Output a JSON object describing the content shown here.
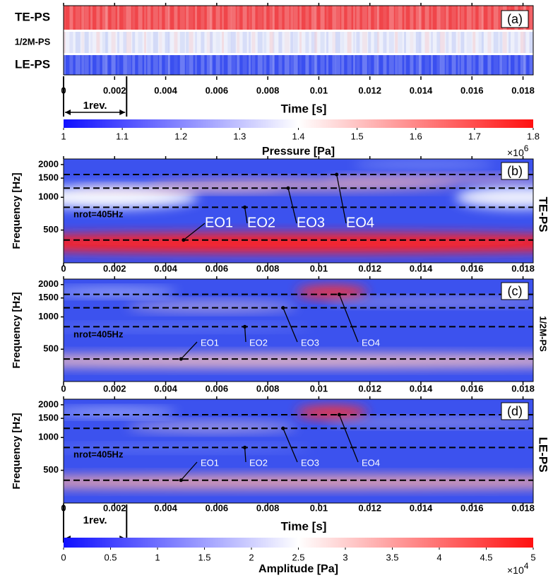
{
  "chart_data": [
    {
      "type": "strips",
      "label": "(a)",
      "rows": [
        "TE-PS",
        "1/2M-PS",
        "LE-PS"
      ],
      "row_colors": [
        "#f0454a",
        "#eef0fb",
        "#3a4ff0"
      ],
      "xlim": [
        0,
        0.0184
      ],
      "xticks": [
        0,
        0.002,
        0.004,
        0.006,
        0.008,
        0.01,
        0.012,
        0.014,
        0.016,
        0.018
      ],
      "xlabel": "Time [s]",
      "rev_label": "1rev.",
      "rev_period": 0.00247,
      "colorbar": {
        "label": "Pressure [Pa]",
        "lim": [
          1,
          1.8
        ],
        "ticks": [
          1,
          1.1,
          1.2,
          1.3,
          1.4,
          1.5,
          1.6,
          1.7,
          1.8
        ],
        "multiplier": "×10",
        "exponent": "6",
        "colormap": [
          "#1010ff",
          "#ffffff",
          "#ff1010"
        ]
      }
    },
    {
      "type": "spectrogram",
      "label": "(b)",
      "side_label": "TE-PS",
      "ylabel": "Frequency [Hz]",
      "ylog": true,
      "ylim": [
        250,
        2250
      ],
      "yticks": [
        500,
        1000,
        1500,
        2000
      ],
      "xlim": [
        0,
        0.0184
      ],
      "xticks": [
        0,
        0.002,
        0.004,
        0.006,
        0.008,
        0.01,
        0.012,
        0.014,
        0.016,
        0.018
      ],
      "harmonics": [
        405,
        810,
        1215,
        1620
      ],
      "rotation_label": "nrot=405Hz",
      "annotation_color": "#ffffff",
      "annotations": [
        {
          "text": "EO1",
          "x": 0.0047,
          "y": 405
        },
        {
          "text": "EO2",
          "x": 0.0071,
          "y": 810
        },
        {
          "text": "EO3",
          "x": 0.0088,
          "y": 1215
        },
        {
          "text": "EO4",
          "x": 0.0107,
          "y": 1620
        }
      ]
    },
    {
      "type": "spectrogram",
      "label": "(c)",
      "side_label": "1/2M-PS",
      "ylabel": "Frequency [Hz]",
      "ylog": true,
      "ylim": [
        250,
        2250
      ],
      "yticks": [
        500,
        1000,
        1500,
        2000
      ],
      "xlim": [
        0,
        0.0184
      ],
      "xticks": [
        0,
        0.002,
        0.004,
        0.006,
        0.008,
        0.01,
        0.012,
        0.014,
        0.016,
        0.018
      ],
      "harmonics": [
        405,
        810,
        1215,
        1620
      ],
      "rotation_label": "nrot=405Hz",
      "annotation_color": "#ffffff",
      "annotations": [
        {
          "text": "EO1",
          "x": 0.0046,
          "y": 405
        },
        {
          "text": "EO2",
          "x": 0.0071,
          "y": 810
        },
        {
          "text": "EO3",
          "x": 0.0086,
          "y": 1215
        },
        {
          "text": "EO4",
          "x": 0.0108,
          "y": 1620
        }
      ]
    },
    {
      "type": "spectrogram",
      "label": "(d)",
      "side_label": "LE-PS",
      "ylabel": "Frequency [Hz]",
      "ylog": true,
      "ylim": [
        250,
        2250
      ],
      "yticks": [
        500,
        1000,
        1500,
        2000
      ],
      "xlim": [
        0,
        0.0184
      ],
      "xticks": [
        0,
        0.002,
        0.004,
        0.006,
        0.008,
        0.01,
        0.012,
        0.014,
        0.016,
        0.018
      ],
      "harmonics": [
        405,
        810,
        1215,
        1620
      ],
      "rotation_label": "nrot=405Hz",
      "annotation_color": "#ffffff",
      "annotations": [
        {
          "text": "EO1",
          "x": 0.0046,
          "y": 405
        },
        {
          "text": "EO2",
          "x": 0.0071,
          "y": 810
        },
        {
          "text": "EO3",
          "x": 0.0086,
          "y": 1215
        },
        {
          "text": "EO4",
          "x": 0.0108,
          "y": 1620
        }
      ],
      "xlabel": "Time [s]",
      "rev_label": "1rev.",
      "rev_period": 0.00247,
      "colorbar": {
        "label": "Amplitude [Pa]",
        "lim": [
          0,
          5
        ],
        "ticks": [
          0,
          0.5,
          1,
          1.5,
          2,
          2.5,
          3,
          3.5,
          4,
          4.5,
          5
        ],
        "multiplier": "×10",
        "exponent": "4",
        "colormap": [
          "#1010ff",
          "#ffffff",
          "#ff1010"
        ]
      }
    }
  ]
}
